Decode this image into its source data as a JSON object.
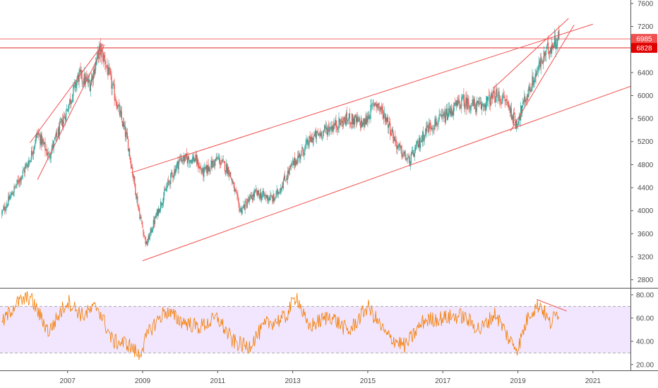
{
  "chart_data": [
    {
      "type": "candlestick",
      "panel": "price",
      "y_ticks": [
        2800,
        3200,
        3600,
        4000,
        4400,
        4800,
        5200,
        5600,
        6000,
        6400,
        6800,
        7200,
        7600
      ],
      "x_ticks": [
        "2007",
        "2009",
        "2011",
        "2013",
        "2015",
        "2017",
        "2019",
        "2021"
      ],
      "x_tick_years": [
        2007,
        2009,
        2011,
        2013,
        2015,
        2017,
        2019,
        2021
      ],
      "ylim": [
        2660,
        7660
      ],
      "xlim": [
        2005.2,
        2022.0
      ],
      "colors": {
        "up": "#26a69a",
        "down": "#ef5350",
        "trendline": "#f0504f"
      },
      "price_levels": [
        {
          "label": "6985",
          "value": 6985,
          "color": "#f0504f"
        },
        {
          "label": "6828",
          "value": 6828,
          "color": "#e00000"
        }
      ],
      "anchor_points": [
        {
          "t": 2005.25,
          "v": 3950
        },
        {
          "t": 2005.6,
          "v": 4400
        },
        {
          "t": 2006.0,
          "v": 4900
        },
        {
          "t": 2006.2,
          "v": 5350
        },
        {
          "t": 2006.5,
          "v": 4950
        },
        {
          "t": 2006.9,
          "v": 5600
        },
        {
          "t": 2007.3,
          "v": 6350
        },
        {
          "t": 2007.6,
          "v": 6200
        },
        {
          "t": 2007.85,
          "v": 6800
        },
        {
          "t": 2008.0,
          "v": 6600
        },
        {
          "t": 2008.3,
          "v": 5900
        },
        {
          "t": 2008.6,
          "v": 5200
        },
        {
          "t": 2008.9,
          "v": 4000
        },
        {
          "t": 2009.1,
          "v": 3400
        },
        {
          "t": 2009.3,
          "v": 3800
        },
        {
          "t": 2009.7,
          "v": 4500
        },
        {
          "t": 2010.0,
          "v": 4900
        },
        {
          "t": 2010.4,
          "v": 4900
        },
        {
          "t": 2010.6,
          "v": 4650
        },
        {
          "t": 2011.0,
          "v": 4900
        },
        {
          "t": 2011.3,
          "v": 4700
        },
        {
          "t": 2011.6,
          "v": 4000
        },
        {
          "t": 2012.0,
          "v": 4300
        },
        {
          "t": 2012.5,
          "v": 4200
        },
        {
          "t": 2013.0,
          "v": 4800
        },
        {
          "t": 2013.5,
          "v": 5250
        },
        {
          "t": 2014.0,
          "v": 5450
        },
        {
          "t": 2014.5,
          "v": 5600
        },
        {
          "t": 2014.9,
          "v": 5500
        },
        {
          "t": 2015.2,
          "v": 5900
        },
        {
          "t": 2015.5,
          "v": 5600
        },
        {
          "t": 2015.8,
          "v": 5100
        },
        {
          "t": 2016.1,
          "v": 4850
        },
        {
          "t": 2016.6,
          "v": 5450
        },
        {
          "t": 2017.0,
          "v": 5600
        },
        {
          "t": 2017.5,
          "v": 5900
        },
        {
          "t": 2018.0,
          "v": 5800
        },
        {
          "t": 2018.4,
          "v": 6000
        },
        {
          "t": 2018.7,
          "v": 5900
        },
        {
          "t": 2018.95,
          "v": 5500
        },
        {
          "t": 2019.3,
          "v": 6100
        },
        {
          "t": 2019.6,
          "v": 6550
        },
        {
          "t": 2019.8,
          "v": 6800
        },
        {
          "t": 2020.0,
          "v": 6950
        },
        {
          "t": 2020.1,
          "v": 7050
        }
      ],
      "trendlines": [
        {
          "from": {
            "t": 2006.0,
            "v": 5180
          },
          "to": {
            "t": 2007.95,
            "v": 6900
          }
        },
        {
          "from": {
            "t": 2006.2,
            "v": 4540
          },
          "to": {
            "t": 2007.98,
            "v": 6880
          }
        },
        {
          "from": {
            "t": 2008.7,
            "v": 4660
          },
          "to": {
            "t": 2021.0,
            "v": 7240
          }
        },
        {
          "from": {
            "t": 2009.0,
            "v": 3130
          },
          "to": {
            "t": 2022.0,
            "v": 6160
          }
        },
        {
          "from": {
            "t": 2018.8,
            "v": 5380
          },
          "to": {
            "t": 2020.5,
            "v": 7230
          }
        },
        {
          "from": {
            "t": 2018.35,
            "v": 6130
          },
          "to": {
            "t": 2020.35,
            "v": 7340
          }
        }
      ]
    },
    {
      "type": "line",
      "panel": "oscillator",
      "y_ticks": [
        20,
        40,
        60,
        80
      ],
      "y_tick_labels": [
        "20.00",
        "40.00",
        "60.00",
        "80.00"
      ],
      "ylim": [
        15,
        86
      ],
      "band": [
        30,
        70
      ],
      "colors": {
        "line": "#f57c00",
        "band_fill": "#f1e6fd",
        "band_edge": "#a9a9a9",
        "divergence": "#f0504f"
      },
      "anchor_points": [
        {
          "t": 2005.25,
          "v": 55
        },
        {
          "t": 2005.6,
          "v": 72
        },
        {
          "t": 2006.0,
          "v": 78
        },
        {
          "t": 2006.5,
          "v": 48
        },
        {
          "t": 2007.0,
          "v": 75
        },
        {
          "t": 2007.4,
          "v": 62
        },
        {
          "t": 2007.8,
          "v": 70
        },
        {
          "t": 2008.2,
          "v": 40
        },
        {
          "t": 2008.6,
          "v": 38
        },
        {
          "t": 2008.9,
          "v": 28
        },
        {
          "t": 2009.2,
          "v": 50
        },
        {
          "t": 2009.6,
          "v": 66
        },
        {
          "t": 2010.0,
          "v": 58
        },
        {
          "t": 2010.5,
          "v": 52
        },
        {
          "t": 2011.0,
          "v": 60
        },
        {
          "t": 2011.4,
          "v": 40
        },
        {
          "t": 2011.8,
          "v": 35
        },
        {
          "t": 2012.3,
          "v": 55
        },
        {
          "t": 2012.8,
          "v": 60
        },
        {
          "t": 2013.1,
          "v": 80
        },
        {
          "t": 2013.4,
          "v": 52
        },
        {
          "t": 2014.0,
          "v": 62
        },
        {
          "t": 2014.5,
          "v": 48
        },
        {
          "t": 2015.0,
          "v": 70
        },
        {
          "t": 2015.5,
          "v": 45
        },
        {
          "t": 2016.0,
          "v": 36
        },
        {
          "t": 2016.5,
          "v": 58
        },
        {
          "t": 2017.0,
          "v": 60
        },
        {
          "t": 2017.5,
          "v": 62
        },
        {
          "t": 2018.0,
          "v": 50
        },
        {
          "t": 2018.4,
          "v": 64
        },
        {
          "t": 2018.8,
          "v": 40
        },
        {
          "t": 2019.0,
          "v": 34
        },
        {
          "t": 2019.3,
          "v": 64
        },
        {
          "t": 2019.6,
          "v": 72
        },
        {
          "t": 2019.85,
          "v": 55
        },
        {
          "t": 2020.1,
          "v": 66
        }
      ],
      "trendlines": [
        {
          "from": {
            "t": 2019.5,
            "v": 76
          },
          "to": {
            "t": 2020.3,
            "v": 66
          }
        }
      ]
    }
  ]
}
